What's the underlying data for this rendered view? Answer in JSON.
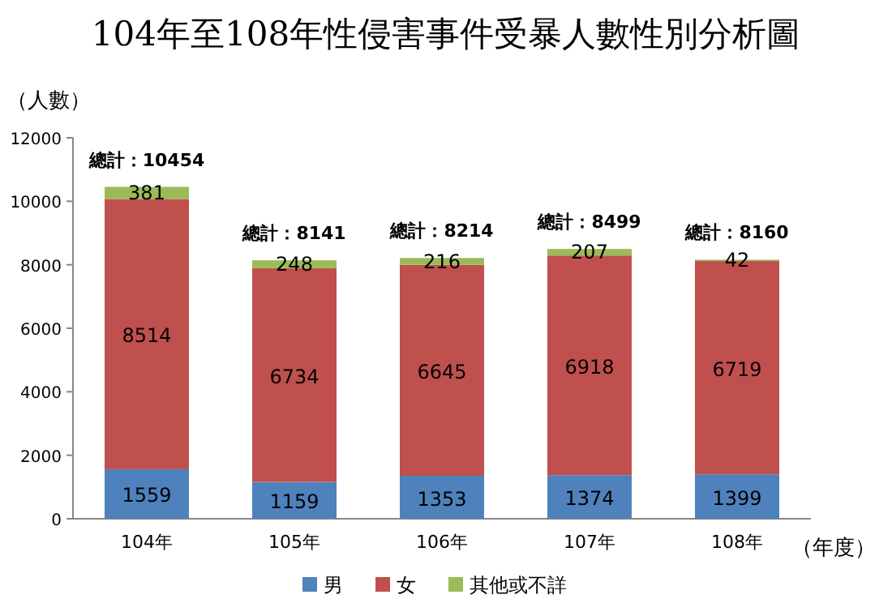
{
  "chart_data": {
    "type": "bar",
    "title": "104年至108年性侵害事件受暴人數性別分析圖",
    "ylabel": "（人數）",
    "xlabel": "（年度）",
    "categories": [
      "104年",
      "105年",
      "106年",
      "107年",
      "108年"
    ],
    "series": [
      {
        "name": "男",
        "color": "#4f81bd",
        "values": [
          1559,
          1159,
          1353,
          1374,
          1399
        ]
      },
      {
        "name": "女",
        "color": "#c0504d",
        "values": [
          8514,
          6734,
          6645,
          6918,
          6719
        ]
      },
      {
        "name": "其他或不詳",
        "color": "#9bbb59",
        "values": [
          381,
          248,
          216,
          207,
          42
        ]
      }
    ],
    "stacked": true,
    "ylim": [
      0,
      12000
    ],
    "yticks": [
      0,
      2000,
      4000,
      6000,
      8000,
      10000,
      12000
    ],
    "data_labels": true,
    "totals": [
      "總計：10454",
      "總計：8141",
      "總計：8214",
      "總計：8499",
      "總計：8160"
    ],
    "legend": "bottom",
    "grid": false
  }
}
